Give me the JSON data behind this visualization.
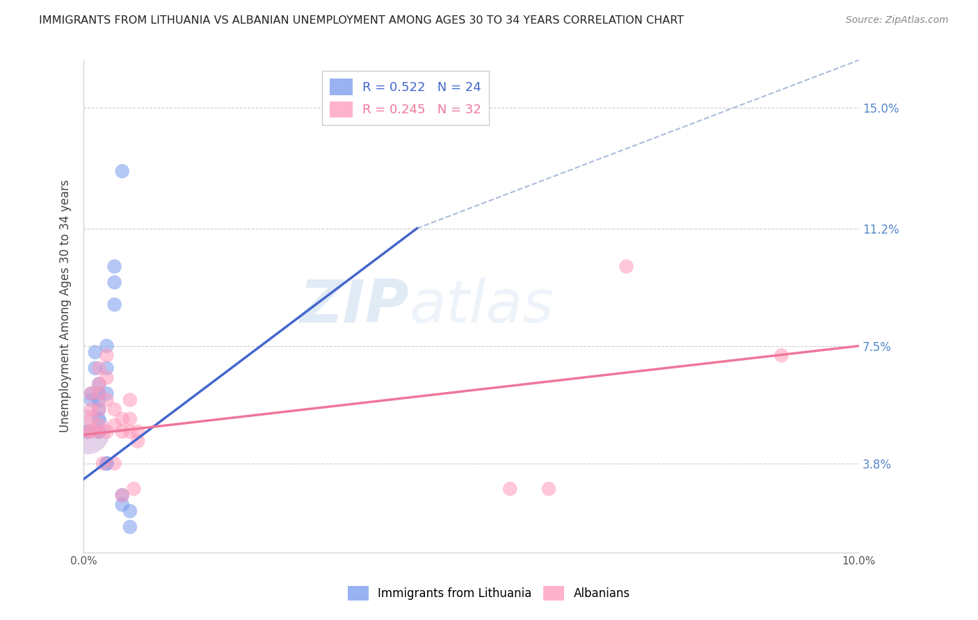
{
  "title": "IMMIGRANTS FROM LITHUANIA VS ALBANIAN UNEMPLOYMENT AMONG AGES 30 TO 34 YEARS CORRELATION CHART",
  "source": "Source: ZipAtlas.com",
  "ylabel": "Unemployment Among Ages 30 to 34 years",
  "y_ticks_right": [
    0.038,
    0.075,
    0.112,
    0.15
  ],
  "y_tick_labels_right": [
    "3.8%",
    "7.5%",
    "11.2%",
    "15.0%"
  ],
  "xlim": [
    0.0,
    0.1
  ],
  "ylim": [
    0.01,
    0.165
  ],
  "legend_entries": [
    {
      "label": "R = 0.522   N = 24",
      "color": "#7799ee"
    },
    {
      "label": "R = 0.245   N = 32",
      "color": "#ff99bb"
    }
  ],
  "blue_scatter": [
    [
      0.0005,
      0.048
    ],
    [
      0.001,
      0.06
    ],
    [
      0.001,
      0.058
    ],
    [
      0.0015,
      0.073
    ],
    [
      0.0015,
      0.068
    ],
    [
      0.002,
      0.063
    ],
    [
      0.002,
      0.06
    ],
    [
      0.002,
      0.058
    ],
    [
      0.002,
      0.055
    ],
    [
      0.002,
      0.052
    ],
    [
      0.002,
      0.048
    ],
    [
      0.003,
      0.075
    ],
    [
      0.003,
      0.068
    ],
    [
      0.003,
      0.06
    ],
    [
      0.003,
      0.038
    ],
    [
      0.003,
      0.038
    ],
    [
      0.004,
      0.1
    ],
    [
      0.004,
      0.095
    ],
    [
      0.004,
      0.088
    ],
    [
      0.005,
      0.13
    ],
    [
      0.005,
      0.028
    ],
    [
      0.005,
      0.025
    ],
    [
      0.006,
      0.023
    ],
    [
      0.006,
      0.018
    ]
  ],
  "pink_scatter": [
    [
      0.0005,
      0.048
    ],
    [
      0.001,
      0.06
    ],
    [
      0.001,
      0.055
    ],
    [
      0.001,
      0.052
    ],
    [
      0.001,
      0.048
    ],
    [
      0.002,
      0.068
    ],
    [
      0.002,
      0.063
    ],
    [
      0.002,
      0.06
    ],
    [
      0.002,
      0.055
    ],
    [
      0.002,
      0.05
    ],
    [
      0.002,
      0.048
    ],
    [
      0.0025,
      0.038
    ],
    [
      0.003,
      0.072
    ],
    [
      0.003,
      0.065
    ],
    [
      0.003,
      0.058
    ],
    [
      0.003,
      0.048
    ],
    [
      0.004,
      0.055
    ],
    [
      0.004,
      0.05
    ],
    [
      0.004,
      0.038
    ],
    [
      0.005,
      0.052
    ],
    [
      0.005,
      0.048
    ],
    [
      0.005,
      0.028
    ],
    [
      0.006,
      0.058
    ],
    [
      0.006,
      0.052
    ],
    [
      0.006,
      0.048
    ],
    [
      0.0065,
      0.03
    ],
    [
      0.007,
      0.048
    ],
    [
      0.007,
      0.045
    ],
    [
      0.055,
      0.03
    ],
    [
      0.06,
      0.03
    ],
    [
      0.07,
      0.1
    ],
    [
      0.09,
      0.072
    ]
  ],
  "blue_line_x": [
    0.0,
    0.043
  ],
  "blue_line_y": [
    0.033,
    0.112
  ],
  "pink_line_x": [
    0.0,
    0.1
  ],
  "pink_line_y": [
    0.047,
    0.075
  ],
  "diag_line_x": [
    0.043,
    0.1
  ],
  "diag_line_y": [
    0.112,
    0.165
  ],
  "watermark_zip": "ZIP",
  "watermark_atlas": "atlas",
  "background_color": "#ffffff",
  "blue_color": "#7799ee",
  "pink_color": "#ff99bb",
  "blue_line_color": "#4466cc",
  "pink_line_color": "#ee7799",
  "diag_line_color": "#aabbdd",
  "grid_color": "#cccccc",
  "right_tick_color": "#5588cc"
}
